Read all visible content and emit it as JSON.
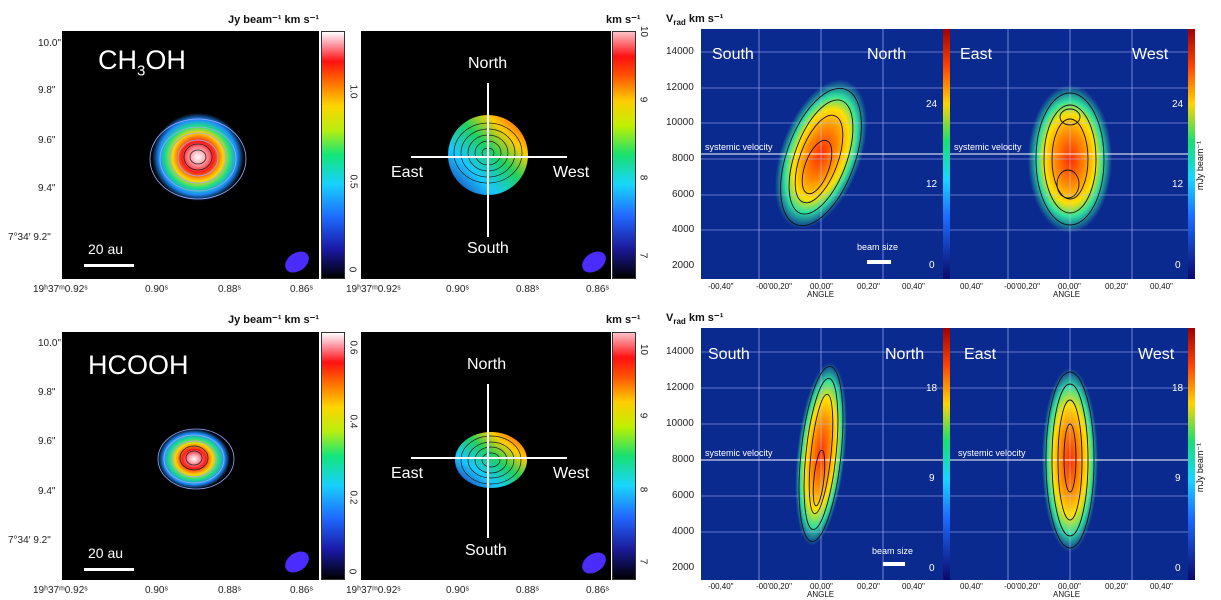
{
  "rows": [
    {
      "molecule": "CH3OH",
      "molecule_main": "CH",
      "molecule_sub": "3",
      "molecule_tail": "OH",
      "intensity_unit": "Jy beam⁻¹ km s⁻¹",
      "intensity_ticks": [
        "1.0",
        "0.5",
        "0"
      ],
      "velocity_unit": "km s⁻¹",
      "velocity_ticks": [
        "10",
        "9",
        "8",
        "7"
      ],
      "pv_unit": "mJy beam⁻¹",
      "pv_ticks": [
        "24",
        "12",
        "0"
      ],
      "scale_label": "20 au"
    },
    {
      "molecule": "HCOOH",
      "molecule_main": "HCOOH",
      "molecule_sub": "",
      "molecule_tail": "",
      "intensity_unit": "Jy beam⁻¹ km s⁻¹",
      "intensity_ticks": [
        "0.6",
        "0.4",
        "0.2",
        "0"
      ],
      "velocity_unit": "km s⁻¹",
      "velocity_ticks": [
        "10",
        "9",
        "8",
        "7"
      ],
      "pv_unit": "mJy beam⁻¹",
      "pv_ticks": [
        "18",
        "9",
        "0"
      ],
      "scale_label": "20 au"
    }
  ],
  "dec_ticks": [
    "10.0\"",
    "9.8\"",
    "9.6\"",
    "9.4\"",
    "7°34′ 9.2\""
  ],
  "ra_ticks": [
    "19ʰ37ᵐ0.92ˢ",
    "0.90ˢ",
    "0.88ˢ",
    "0.86ˢ"
  ],
  "compass": {
    "north": "North",
    "south": "South",
    "east": "East",
    "west": "West"
  },
  "pv_axis": {
    "ylabel_main": "V",
    "ylabel_sub": "rad",
    "ylabel_unit": " km s⁻¹",
    "y_ticks": [
      "14000",
      "12000",
      "10000",
      "8000",
      "6000",
      "4000",
      "2000"
    ],
    "x_ticks_left": [
      "-00,40\"",
      "-00'00,20\"",
      "00,00\"",
      "00,20\"",
      "00,40\""
    ],
    "x_ticks_right": [
      "00,40\"",
      "-00'00,20\"",
      "00,00\"",
      "00,20\"",
      "00,40\""
    ],
    "xlabel": "ANGLE",
    "systemic_label": "systemic velocity",
    "beam_label": "beam size",
    "dir_left": [
      "South",
      "North"
    ],
    "dir_right": [
      "East",
      "West"
    ]
  }
}
